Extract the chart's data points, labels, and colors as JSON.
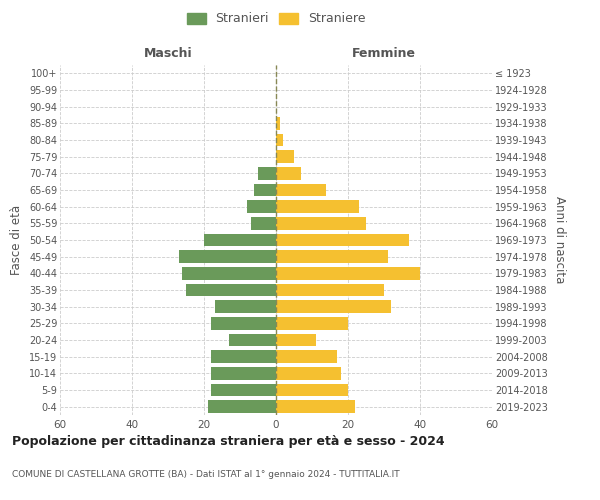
{
  "age_groups": [
    "0-4",
    "5-9",
    "10-14",
    "15-19",
    "20-24",
    "25-29",
    "30-34",
    "35-39",
    "40-44",
    "45-49",
    "50-54",
    "55-59",
    "60-64",
    "65-69",
    "70-74",
    "75-79",
    "80-84",
    "85-89",
    "90-94",
    "95-99",
    "100+"
  ],
  "birth_years": [
    "2019-2023",
    "2014-2018",
    "2009-2013",
    "2004-2008",
    "1999-2003",
    "1994-1998",
    "1989-1993",
    "1984-1988",
    "1979-1983",
    "1974-1978",
    "1969-1973",
    "1964-1968",
    "1959-1963",
    "1954-1958",
    "1949-1953",
    "1944-1948",
    "1939-1943",
    "1934-1938",
    "1929-1933",
    "1924-1928",
    "≤ 1923"
  ],
  "maschi": [
    19,
    18,
    18,
    18,
    13,
    18,
    17,
    25,
    26,
    27,
    20,
    7,
    8,
    6,
    5,
    0,
    0,
    0,
    0,
    0,
    0
  ],
  "femmine": [
    22,
    20,
    18,
    17,
    11,
    20,
    32,
    30,
    40,
    31,
    37,
    25,
    23,
    14,
    7,
    5,
    2,
    1,
    0,
    0,
    0
  ],
  "male_color": "#6a9a5a",
  "female_color": "#f5c030",
  "grid_color": "#cccccc",
  "center_line_color": "#888855",
  "xlim": 60,
  "title": "Popolazione per cittadinanza straniera per età e sesso - 2024",
  "subtitle": "COMUNE DI CASTELLANA GROTTE (BA) - Dati ISTAT al 1° gennaio 2024 - TUTTITALIA.IT",
  "ylabel_left": "Fasce di età",
  "ylabel_right": "Anni di nascita",
  "legend_male": "Stranieri",
  "legend_female": "Straniere",
  "header_left": "Maschi",
  "header_right": "Femmine",
  "background_color": "#ffffff",
  "xtick_vals": [
    -60,
    -40,
    -20,
    0,
    20,
    40,
    60
  ],
  "xtick_labels": [
    "60",
    "40",
    "20",
    "0",
    "20",
    "40",
    "60"
  ]
}
